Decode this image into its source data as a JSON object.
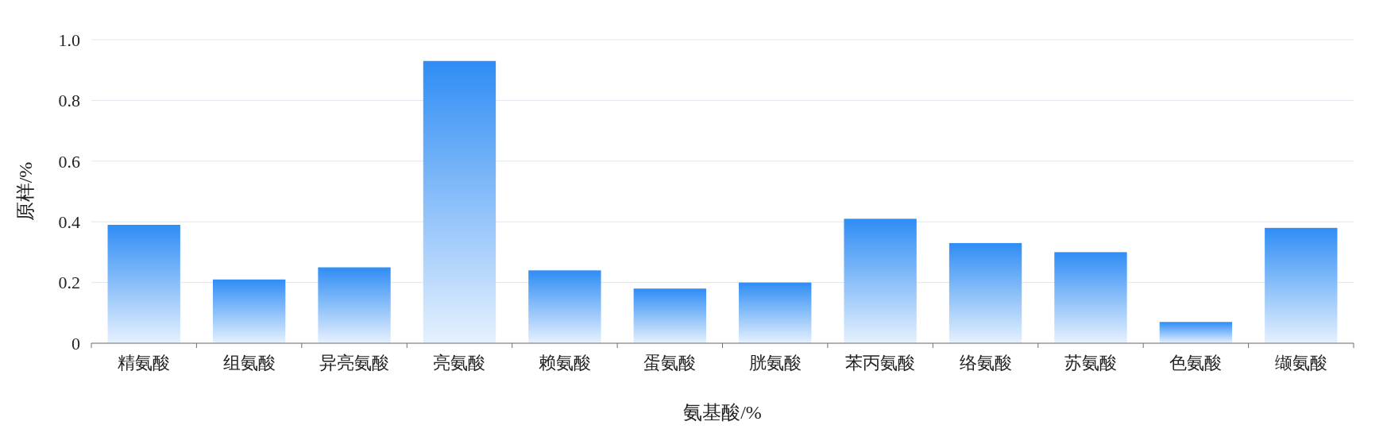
{
  "chart_data": {
    "type": "bar",
    "xlabel": "氨基酸/%",
    "ylabel": "原样/%",
    "categories": [
      "精氨酸",
      "组氨酸",
      "异亮氨酸",
      "亮氨酸",
      "赖氨酸",
      "蛋氨酸",
      "胱氨酸",
      "苯丙氨酸",
      "络氨酸",
      "苏氨酸",
      "色氨酸",
      "缬氨酸"
    ],
    "values": [
      0.39,
      0.21,
      0.25,
      0.93,
      0.24,
      0.18,
      0.2,
      0.41,
      0.33,
      0.3,
      0.07,
      0.38
    ],
    "color": "#2f8df5",
    "ylim": [
      0,
      1
    ],
    "yticks": [
      0,
      0.2,
      0.4,
      0.6,
      0.8,
      {
        "value": 1,
        "label": "1.0"
      }
    ],
    "grid": "y"
  }
}
